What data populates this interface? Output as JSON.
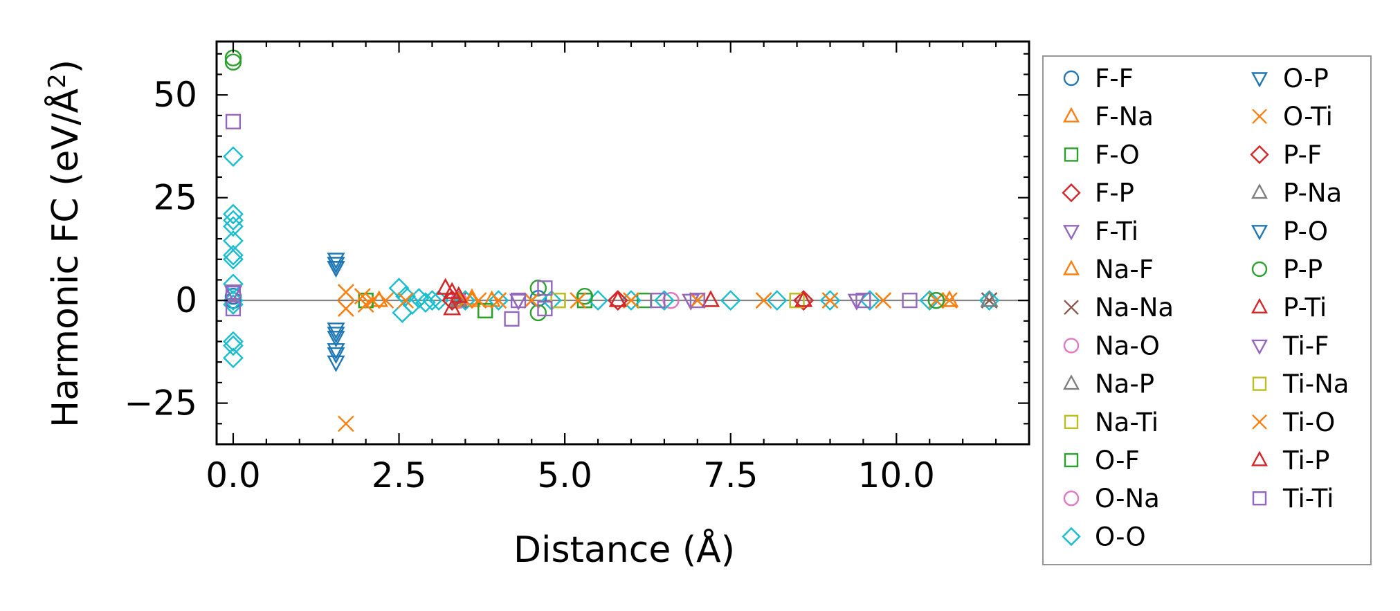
{
  "chart_data": {
    "type": "scatter",
    "title": "",
    "xlabel": "Distance (Å)",
    "ylabel": "Harmonic FC (eV/Å²)",
    "ylabel_prefix": "Harmonic FC (eV/Å",
    "ylabel_sup": "2",
    "ylabel_suffix": ")",
    "xlim": [
      -0.25,
      12.0
    ],
    "ylim": [
      -35,
      63
    ],
    "xticks": [
      0.0,
      2.5,
      5.0,
      7.5,
      10.0
    ],
    "xtick_labels": [
      "0.0",
      "2.5",
      "5.0",
      "7.5",
      "10.0"
    ],
    "yticks": [
      -25,
      0,
      25,
      50
    ],
    "ytick_labels": [
      "−25",
      "0",
      "25",
      "50"
    ],
    "zero_line": true,
    "grid": false,
    "legend_position": "outside-right",
    "legend_columns": 2,
    "series": [
      {
        "name": "F-F",
        "marker": "circle",
        "color": "#1f77b4",
        "x": [
          0,
          0,
          4.6,
          10.6
        ],
        "y": [
          0,
          1,
          0.5,
          0
        ]
      },
      {
        "name": "F-Na",
        "marker": "triangle",
        "color": "#ff7f0e",
        "x": [
          2.2,
          3.6,
          3.9,
          10.8
        ],
        "y": [
          0,
          0.5,
          0,
          0
        ]
      },
      {
        "name": "F-O",
        "marker": "square",
        "color": "#2ca02c",
        "x": [
          2.0,
          3.8,
          5.3,
          6.2
        ],
        "y": [
          0,
          -2.5,
          0,
          0
        ]
      },
      {
        "name": "F-P",
        "marker": "diamond",
        "color": "#d62728",
        "x": [
          3.3,
          5.8,
          8.6
        ],
        "y": [
          0,
          0,
          0
        ]
      },
      {
        "name": "F-Ti",
        "marker": "triangle-down",
        "color": "#9467bd",
        "x": [
          0,
          4.3,
          6.9,
          9.4
        ],
        "y": [
          2,
          0,
          0,
          0
        ]
      },
      {
        "name": "Na-F",
        "marker": "triangle",
        "color": "#ff7f0e",
        "x": [
          2.2,
          3.6,
          10.8
        ],
        "y": [
          0,
          0,
          0
        ]
      },
      {
        "name": "Na-Na",
        "marker": "x",
        "color": "#8c564b",
        "x": [
          3.4,
          11.4
        ],
        "y": [
          0,
          0
        ]
      },
      {
        "name": "Na-O",
        "marker": "circle",
        "color": "#e377c2",
        "x": [
          3.4,
          6.6
        ],
        "y": [
          0,
          0
        ]
      },
      {
        "name": "Na-P",
        "marker": "triangle",
        "color": "#7f7f7f",
        "x": [
          3.4,
          11.4
        ],
        "y": [
          0,
          0
        ]
      },
      {
        "name": "Na-Ti",
        "marker": "square",
        "color": "#bcbd22",
        "x": [
          4.9,
          8.5
        ],
        "y": [
          0,
          0
        ]
      },
      {
        "name": "O-F",
        "marker": "square",
        "color": "#2ca02c",
        "x": [
          2.0,
          3.8,
          5.3
        ],
        "y": [
          0,
          -2.5,
          0
        ]
      },
      {
        "name": "O-Na",
        "marker": "circle",
        "color": "#e377c2",
        "x": [
          3.4,
          6.6
        ],
        "y": [
          0,
          0
        ]
      },
      {
        "name": "O-O",
        "marker": "diamond",
        "color": "#17becf",
        "x": [
          0,
          0,
          0,
          0,
          0,
          0,
          0,
          0,
          0,
          0,
          0,
          0,
          0,
          2.5,
          2.55,
          2.6,
          2.7,
          2.8,
          2.9,
          3.0,
          3.1,
          3.5,
          4.0,
          4.8,
          5.5,
          6.0,
          6.5,
          7.5,
          8.2,
          9.0,
          9.6,
          10.5,
          11.4
        ],
        "y": [
          35,
          21,
          19.5,
          18,
          14.5,
          11,
          10,
          4,
          0,
          -1,
          -10,
          -11,
          -14,
          3,
          -3,
          1,
          -1,
          0.5,
          -0.5,
          0,
          0,
          0,
          0,
          0,
          0,
          0,
          0,
          0,
          0,
          0,
          0,
          0,
          0
        ]
      },
      {
        "name": "O-P",
        "marker": "triangle-down",
        "color": "#1f77b4",
        "x": [
          1.55,
          1.55,
          1.55,
          1.55,
          1.55,
          1.55,
          1.55
        ],
        "y": [
          10,
          9,
          8,
          -7,
          -9,
          -12,
          -15
        ]
      },
      {
        "name": "O-Ti",
        "marker": "x",
        "color": "#ff7f0e",
        "x": [
          1.7,
          1.7,
          1.7,
          1.95,
          2.0,
          2.1,
          2.3,
          2.6,
          3.5,
          3.7,
          4.0,
          4.5,
          5.2,
          6.0,
          7.0,
          8.0,
          9.0,
          9.8,
          10.6,
          10.8
        ],
        "y": [
          -30,
          2,
          -2,
          1,
          -1,
          0,
          0,
          0,
          0,
          0,
          0,
          0,
          0,
          0,
          0,
          0,
          0,
          0,
          0,
          0
        ]
      },
      {
        "name": "P-F",
        "marker": "diamond",
        "color": "#d62728",
        "x": [
          3.3,
          5.8,
          8.6
        ],
        "y": [
          0,
          0,
          0
        ]
      },
      {
        "name": "P-Na",
        "marker": "triangle",
        "color": "#7f7f7f",
        "x": [
          3.4,
          11.4
        ],
        "y": [
          0,
          0
        ]
      },
      {
        "name": "P-O",
        "marker": "triangle-down",
        "color": "#1f77b4",
        "x": [
          1.55,
          1.55,
          1.55,
          1.55
        ],
        "y": [
          9,
          8,
          -8,
          -13
        ]
      },
      {
        "name": "P-P",
        "marker": "circle",
        "color": "#2ca02c",
        "x": [
          0,
          0,
          4.6,
          4.6,
          5.3,
          10.6
        ],
        "y": [
          59,
          58,
          3,
          -3,
          1,
          0
        ]
      },
      {
        "name": "P-Ti",
        "marker": "triangle",
        "color": "#d62728",
        "x": [
          3.2,
          3.3,
          3.4,
          3.3,
          5.8,
          7.2,
          8.6
        ],
        "y": [
          3,
          2,
          1,
          -2,
          0,
          0,
          0
        ]
      },
      {
        "name": "Ti-F",
        "marker": "triangle-down",
        "color": "#9467bd",
        "x": [
          0,
          4.3,
          6.9,
          9.4
        ],
        "y": [
          2,
          0,
          0,
          0
        ]
      },
      {
        "name": "Ti-Na",
        "marker": "square",
        "color": "#bcbd22",
        "x": [
          4.9,
          8.5
        ],
        "y": [
          0,
          0
        ]
      },
      {
        "name": "Ti-O",
        "marker": "x",
        "color": "#ff7f0e",
        "x": [
          1.7,
          1.7,
          1.95,
          2.0,
          2.1,
          3.5,
          4.0,
          4.5,
          5.2,
          6.0,
          7.0,
          8.0,
          9.0,
          9.8
        ],
        "y": [
          2,
          -2,
          1,
          -1,
          0,
          0,
          0,
          0,
          0,
          0,
          0,
          0,
          0,
          0
        ]
      },
      {
        "name": "Ti-P",
        "marker": "triangle",
        "color": "#d62728",
        "x": [
          3.2,
          3.3,
          3.4,
          5.8,
          7.2,
          8.6
        ],
        "y": [
          3,
          2,
          1,
          0,
          0,
          0
        ]
      },
      {
        "name": "Ti-Ti",
        "marker": "square",
        "color": "#9467bd",
        "x": [
          0,
          0,
          0,
          4.2,
          4.3,
          4.7,
          4.7,
          6.4,
          7.0,
          9.5,
          10.2
        ],
        "y": [
          43.5,
          2,
          -2,
          -4.5,
          0,
          3,
          -2,
          0,
          0,
          0,
          0
        ]
      }
    ]
  }
}
